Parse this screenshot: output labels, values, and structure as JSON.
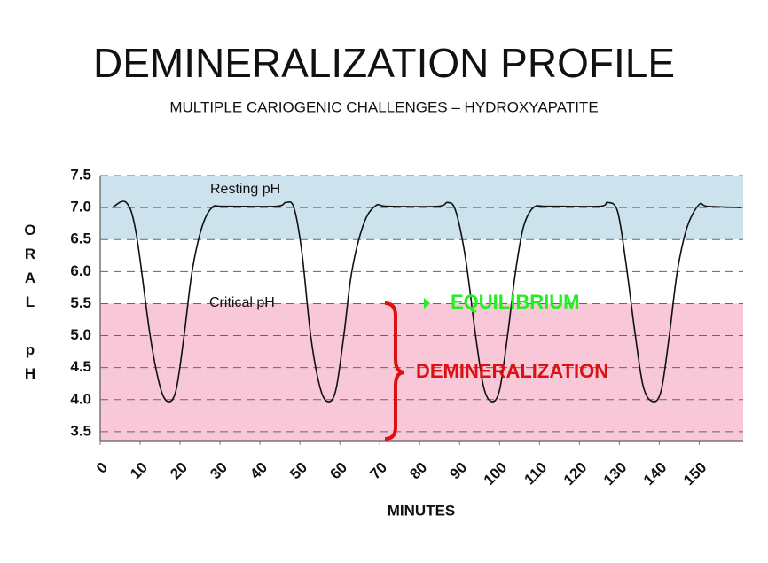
{
  "chart_data": {
    "type": "line",
    "title": "DEMINERALIZATION PROFILE",
    "subtitle": "MULTIPLE CARIOGENIC CHALLENGES – HYDROXYAPATITE",
    "xlabel": "MINUTES",
    "ylabel": "ORAL pH",
    "xlim": [
      0,
      161
    ],
    "ylim": [
      3.36,
      7.5
    ],
    "xticks": [
      0,
      10,
      20,
      30,
      40,
      50,
      60,
      70,
      80,
      90,
      100,
      110,
      120,
      130,
      140,
      150
    ],
    "yticks": [
      3.5,
      {
        "value": 4,
        "label": "4.0"
      },
      4.5,
      {
        "value": 5,
        "label": "5.0"
      },
      5.5,
      {
        "value": 6,
        "label": "6.0"
      },
      6.5,
      {
        "value": 7,
        "label": "7.0"
      },
      7.5
    ],
    "grid": true,
    "bands": [
      {
        "label": "Resting pH",
        "from": 6.5,
        "to": 7.5,
        "color": "#cce3ee"
      },
      {
        "label": "Critical pH",
        "from": 3.5,
        "to": 5.5,
        "color": "#f8c8d8"
      }
    ],
    "annotations": [
      {
        "text": "EQUILIBRIUM",
        "color": "#22ee22"
      },
      {
        "text": "DEMINERALIZATION",
        "color": "#dd1111"
      }
    ],
    "series": [
      {
        "color": "#111111",
        "x": [
          3,
          6.5,
          9,
          12.5,
          15,
          17,
          19,
          21,
          23,
          25.5,
          28,
          31,
          44,
          46.5,
          48.5,
          50.5,
          52.7,
          55,
          57,
          59,
          61,
          63,
          66,
          69,
          72,
          84.5,
          87,
          89,
          91.5,
          94,
          96,
          98,
          100,
          102,
          104,
          106,
          108.5,
          112,
          125,
          127,
          129.5,
          131.5,
          134,
          136,
          138.4,
          140.5,
          142.5,
          144.5,
          147,
          150,
          152,
          160.5
        ],
        "values": [
          7.0,
          7.08,
          6.6,
          5.0,
          4.2,
          3.97,
          4.15,
          5.0,
          6.0,
          6.7,
          7.0,
          7.02,
          7.02,
          7.08,
          7.0,
          6.3,
          5.0,
          4.2,
          3.97,
          4.15,
          5.0,
          6.0,
          6.75,
          7.03,
          7.02,
          7.02,
          7.08,
          6.95,
          6.2,
          5.0,
          4.2,
          3.97,
          4.15,
          5.0,
          6.0,
          6.7,
          7.0,
          7.02,
          7.02,
          7.08,
          6.95,
          6.2,
          5.0,
          4.2,
          3.97,
          4.15,
          5.0,
          6.0,
          6.7,
          7.05,
          7.02,
          7.0
        ]
      }
    ]
  }
}
